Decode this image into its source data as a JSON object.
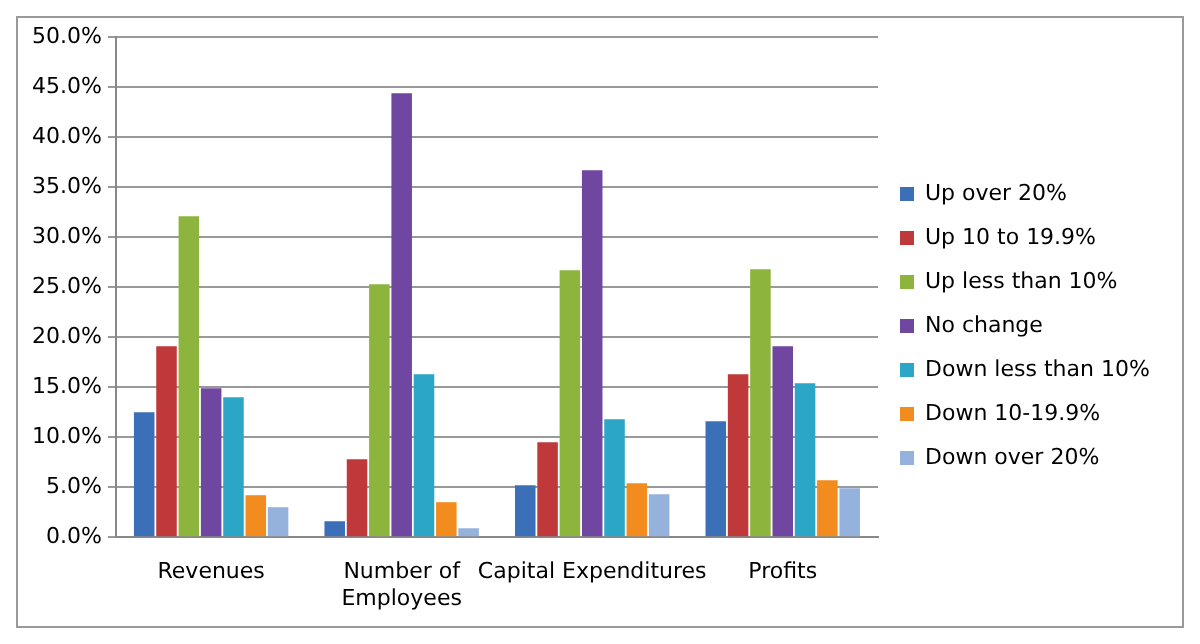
{
  "chart_data": {
    "type": "bar",
    "categories": [
      "Revenues",
      "Number of Employees",
      "Capital Expenditures",
      "Profits"
    ],
    "series": [
      {
        "name": "Up over 20%",
        "color": "#3b6fb8",
        "values": [
          12.5,
          1.6,
          5.2,
          11.6
        ]
      },
      {
        "name": "Up 10 to 19.9%",
        "color": "#c0393a",
        "values": [
          19.1,
          7.8,
          9.5,
          16.3
        ]
      },
      {
        "name": "Up less than 10%",
        "color": "#8db43c",
        "values": [
          32.1,
          25.3,
          26.7,
          26.8
        ]
      },
      {
        "name": "No change",
        "color": "#6f47a0",
        "values": [
          14.9,
          44.4,
          36.7,
          19.1
        ]
      },
      {
        "name": "Down less than 10%",
        "color": "#2ba6c7",
        "values": [
          14.0,
          16.3,
          11.8,
          15.4
        ]
      },
      {
        "name": "Down 10-19.9%",
        "color": "#f28c1f",
        "values": [
          4.2,
          3.5,
          5.4,
          5.7
        ]
      },
      {
        "name": "Down over 20%",
        "color": "#95b2dc",
        "values": [
          3.0,
          0.9,
          4.3,
          4.9
        ]
      }
    ],
    "ylim": [
      0,
      50
    ],
    "yticks": [
      {
        "value": 0,
        "label": "0.0%"
      },
      {
        "value": 5,
        "label": "5.0%"
      },
      {
        "value": 10,
        "label": "10.0%"
      },
      {
        "value": 15,
        "label": "15.0%"
      },
      {
        "value": 20,
        "label": "20.0%"
      },
      {
        "value": 25,
        "label": "25.0%"
      },
      {
        "value": 30,
        "label": "30.0%"
      },
      {
        "value": 35,
        "label": "35.0%"
      },
      {
        "value": 40,
        "label": "40.0%"
      },
      {
        "value": 45,
        "label": "45.0%"
      },
      {
        "value": 50,
        "label": "50.0%"
      }
    ],
    "grid": "y",
    "legend": "right"
  }
}
